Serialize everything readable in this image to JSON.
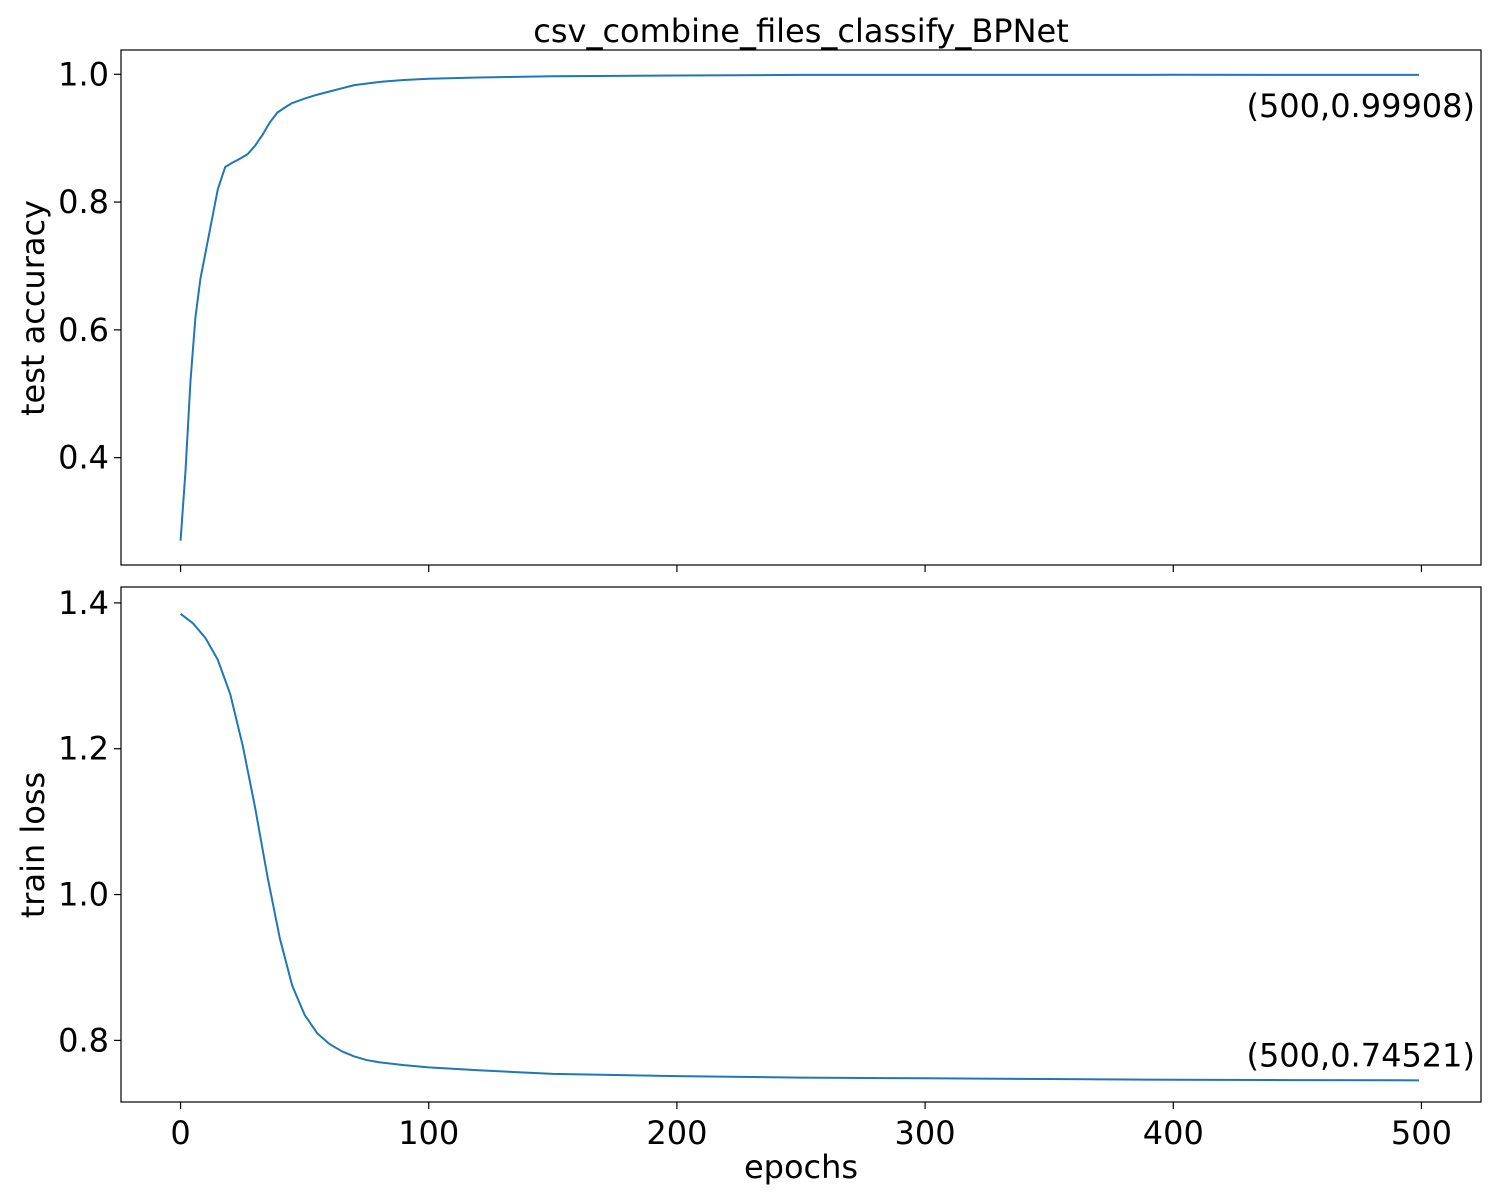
{
  "chart_data": [
    {
      "type": "line",
      "title": "csv_combine_files_classify_BPNet",
      "xlabel": "",
      "ylabel": "test accuracy",
      "xlim": [
        -24,
        524
      ],
      "ylim": [
        0.232,
        1.038
      ],
      "x_ticks": [
        0,
        100,
        200,
        300,
        400,
        500
      ],
      "x_tick_labels_visible": false,
      "y_ticks": [
        0.4,
        0.6,
        0.8,
        1.0
      ],
      "y_tick_labels": [
        "0.4",
        "0.6",
        "0.8",
        "1.0"
      ],
      "grid": false,
      "color": "#1f77b4",
      "annotation": {
        "x": 500,
        "y": 0.99908,
        "text": "(500,0.99908)"
      },
      "x": [
        0,
        2,
        4,
        6,
        8,
        10,
        12,
        15,
        18,
        21,
        24,
        27,
        30,
        33,
        36,
        39,
        42,
        45,
        50,
        55,
        60,
        65,
        70,
        80,
        90,
        100,
        120,
        150,
        200,
        250,
        300,
        350,
        400,
        450,
        499
      ],
      "y": [
        0.27,
        0.38,
        0.52,
        0.62,
        0.68,
        0.72,
        0.76,
        0.82,
        0.855,
        0.862,
        0.868,
        0.875,
        0.888,
        0.905,
        0.925,
        0.94,
        0.948,
        0.955,
        0.962,
        0.968,
        0.973,
        0.978,
        0.983,
        0.988,
        0.991,
        0.993,
        0.995,
        0.997,
        0.998,
        0.999,
        0.999,
        0.999,
        0.9992,
        0.9991,
        0.99908
      ]
    },
    {
      "type": "line",
      "title": "",
      "xlabel": "epochs",
      "ylabel": "train loss",
      "xlim": [
        -24,
        524
      ],
      "ylim": [
        0.7155,
        1.4218
      ],
      "x_ticks": [
        0,
        100,
        200,
        300,
        400,
        500
      ],
      "x_tick_labels": [
        "0",
        "100",
        "200",
        "300",
        "400",
        "500"
      ],
      "y_ticks": [
        0.8,
        1.0,
        1.2,
        1.4
      ],
      "y_tick_labels": [
        "0.8",
        "1.0",
        "1.2",
        "1.4"
      ],
      "grid": false,
      "color": "#1f77b4",
      "annotation": {
        "x": 500,
        "y": 0.74521,
        "text": "(500,0.74521)"
      },
      "x": [
        0,
        5,
        10,
        15,
        20,
        25,
        30,
        35,
        40,
        45,
        50,
        55,
        60,
        65,
        70,
        75,
        80,
        90,
        100,
        120,
        150,
        200,
        250,
        300,
        350,
        400,
        450,
        499
      ],
      "y": [
        1.385,
        1.372,
        1.352,
        1.322,
        1.275,
        1.205,
        1.12,
        1.025,
        0.94,
        0.875,
        0.835,
        0.81,
        0.795,
        0.785,
        0.778,
        0.773,
        0.77,
        0.766,
        0.763,
        0.759,
        0.754,
        0.751,
        0.749,
        0.748,
        0.747,
        0.746,
        0.7455,
        0.74521
      ]
    }
  ]
}
